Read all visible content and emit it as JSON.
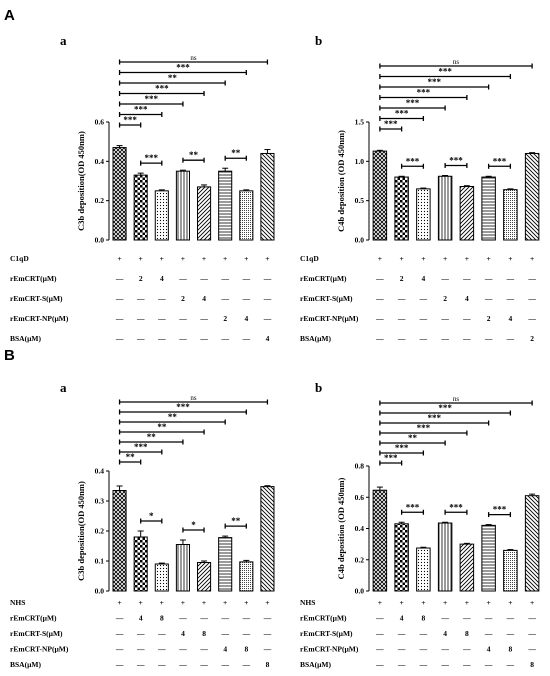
{
  "section_labels": [
    "A",
    "B"
  ],
  "patterns": {
    "A": [
      "crosshatch",
      "checker",
      "dots",
      "vlines",
      "diag",
      "hlines",
      "fine",
      "diag2"
    ],
    "B": [
      "crosshatch",
      "checker",
      "dots",
      "vlines",
      "diag",
      "hlines",
      "fine",
      "diag2"
    ]
  },
  "chart_data": [
    {
      "panel": "Aa",
      "label": "a",
      "type": "bar",
      "ylabel": "C3b deposition(OD 450nm)",
      "ylim": [
        0,
        0.6
      ],
      "yticks": [
        0.0,
        0.2,
        0.4,
        0.6
      ],
      "tick_decimals": 1,
      "values": [
        0.47,
        0.33,
        0.25,
        0.35,
        0.27,
        0.35,
        0.25,
        0.44
      ],
      "errors": [
        0.01,
        0.01,
        0.005,
        0.005,
        0.01,
        0.015,
        0.005,
        0.02
      ],
      "sig_top": [
        "ns",
        "***",
        "**",
        "***",
        "***",
        "***",
        "***"
      ],
      "sig_pairs": [
        {
          "from": 1,
          "to": 2,
          "label": "***"
        },
        {
          "from": 3,
          "to": 4,
          "label": "**"
        },
        {
          "from": 5,
          "to": 6,
          "label": "**"
        }
      ],
      "table": {
        "rows": [
          {
            "label": "C1qD",
            "cells": [
              "+",
              "+",
              "+",
              "+",
              "+",
              "+",
              "+",
              "+"
            ]
          },
          {
            "label": "rEmCRT(µM)",
            "cells": [
              "—",
              "2",
              "4",
              "—",
              "—",
              "—",
              "—",
              "—"
            ]
          },
          {
            "label": "rEmCRT-S(µM)",
            "cells": [
              "—",
              "—",
              "—",
              "2",
              "4",
              "—",
              "—",
              "—"
            ]
          },
          {
            "label": "rEmCRT-NP(µM)",
            "cells": [
              "—",
              "—",
              "—",
              "—",
              "—",
              "2",
              "4",
              "—"
            ]
          },
          {
            "label": "BSA(µM)",
            "cells": [
              "—",
              "—",
              "—",
              "—",
              "—",
              "—",
              "—",
              "4"
            ]
          }
        ]
      }
    },
    {
      "panel": "Ab",
      "label": "b",
      "type": "bar",
      "ylabel": "C4b deposition (OD 450nm)",
      "ylim": [
        0,
        1.5
      ],
      "yticks": [
        0.0,
        0.5,
        1.0,
        1.5
      ],
      "tick_decimals": 1,
      "values": [
        1.13,
        0.8,
        0.65,
        0.81,
        0.68,
        0.8,
        0.64,
        1.1
      ],
      "errors": [
        0.01,
        0.01,
        0.01,
        0.01,
        0.01,
        0.01,
        0.01,
        0.01
      ],
      "sig_top": [
        "ns",
        "***",
        "***",
        "***",
        "***",
        "***",
        "***"
      ],
      "sig_pairs": [
        {
          "from": 1,
          "to": 2,
          "label": "***"
        },
        {
          "from": 3,
          "to": 4,
          "label": "***"
        },
        {
          "from": 5,
          "to": 6,
          "label": "***"
        }
      ],
      "table": {
        "rows": [
          {
            "label": "C1qD",
            "cells": [
              "+",
              "+",
              "+",
              "+",
              "+",
              "+",
              "+",
              "+"
            ]
          },
          {
            "label": "rEmCRT(µM)",
            "cells": [
              "—",
              "2",
              "4",
              "—",
              "—",
              "—",
              "—",
              "—"
            ]
          },
          {
            "label": "rEmCRT-S(µM)",
            "cells": [
              "—",
              "—",
              "—",
              "2",
              "4",
              "—",
              "—",
              "—"
            ]
          },
          {
            "label": "rEmCRT-NP(µM)",
            "cells": [
              "—",
              "—",
              "—",
              "—",
              "—",
              "2",
              "4",
              "—"
            ]
          },
          {
            "label": "BSA(µM)",
            "cells": [
              "—",
              "—",
              "—",
              "—",
              "—",
              "—",
              "—",
              "2"
            ]
          }
        ]
      }
    },
    {
      "panel": "Ba",
      "label": "a",
      "type": "bar",
      "ylabel": "C3b deposition(OD 450nm)",
      "ylim": [
        0,
        0.4
      ],
      "yticks": [
        0.0,
        0.1,
        0.2,
        0.3,
        0.4
      ],
      "tick_decimals": 1,
      "values": [
        0.335,
        0.18,
        0.09,
        0.155,
        0.095,
        0.178,
        0.097,
        0.348
      ],
      "errors": [
        0.015,
        0.02,
        0.003,
        0.015,
        0.005,
        0.005,
        0.005,
        0.003
      ],
      "sig_top": [
        "ns",
        "***",
        "**",
        "**",
        "**",
        "***",
        "**"
      ],
      "sig_pairs": [
        {
          "from": 1,
          "to": 2,
          "label": "*"
        },
        {
          "from": 3,
          "to": 4,
          "label": "*"
        },
        {
          "from": 5,
          "to": 6,
          "label": "**"
        }
      ],
      "table": {
        "rows": [
          {
            "label": "NHS",
            "cells": [
              "+",
              "+",
              "+",
              "+",
              "+",
              "+",
              "+",
              "+"
            ]
          },
          {
            "label": "rEmCRT(µM)",
            "cells": [
              "—",
              "4",
              "8",
              "—",
              "—",
              "—",
              "—",
              "—"
            ]
          },
          {
            "label": "rEmCRT-S(µM)",
            "cells": [
              "—",
              "—",
              "—",
              "4",
              "8",
              "—",
              "—",
              "—"
            ]
          },
          {
            "label": "rEmCRT-NP(µM)",
            "cells": [
              "—",
              "—",
              "—",
              "—",
              "—",
              "4",
              "8",
              "—"
            ]
          },
          {
            "label": "BSA(µM)",
            "cells": [
              "—",
              "—",
              "—",
              "—",
              "—",
              "—",
              "—",
              "8"
            ]
          }
        ]
      }
    },
    {
      "panel": "Bb",
      "label": "b",
      "type": "bar",
      "ylabel": "C4b deposition (OD 450nm)",
      "ylim": [
        0,
        0.8
      ],
      "yticks": [
        0.0,
        0.2,
        0.4,
        0.6,
        0.8
      ],
      "tick_decimals": 1,
      "values": [
        0.645,
        0.43,
        0.275,
        0.435,
        0.3,
        0.42,
        0.26,
        0.61
      ],
      "errors": [
        0.02,
        0.01,
        0.005,
        0.005,
        0.005,
        0.005,
        0.005,
        0.01
      ],
      "sig_top": [
        "ns",
        "***",
        "***",
        "***",
        "**",
        "***",
        "***"
      ],
      "sig_pairs": [
        {
          "from": 1,
          "to": 2,
          "label": "***"
        },
        {
          "from": 3,
          "to": 4,
          "label": "***"
        },
        {
          "from": 5,
          "to": 6,
          "label": "***"
        }
      ],
      "table": {
        "rows": [
          {
            "label": "NHS",
            "cells": [
              "+",
              "+",
              "+",
              "+",
              "+",
              "+",
              "+",
              "+"
            ]
          },
          {
            "label": "rEmCRT(µM)",
            "cells": [
              "—",
              "4",
              "8",
              "—",
              "—",
              "—",
              "—",
              "—"
            ]
          },
          {
            "label": "rEmCRT-S(µM)",
            "cells": [
              "—",
              "—",
              "—",
              "4",
              "8",
              "—",
              "—",
              "—"
            ]
          },
          {
            "label": "rEmCRT-NP(µM)",
            "cells": [
              "—",
              "—",
              "—",
              "—",
              "—",
              "4",
              "8",
              "—"
            ]
          },
          {
            "label": "BSA(µM)",
            "cells": [
              "—",
              "—",
              "—",
              "—",
              "—",
              "—",
              "—",
              "8"
            ]
          }
        ]
      }
    }
  ]
}
